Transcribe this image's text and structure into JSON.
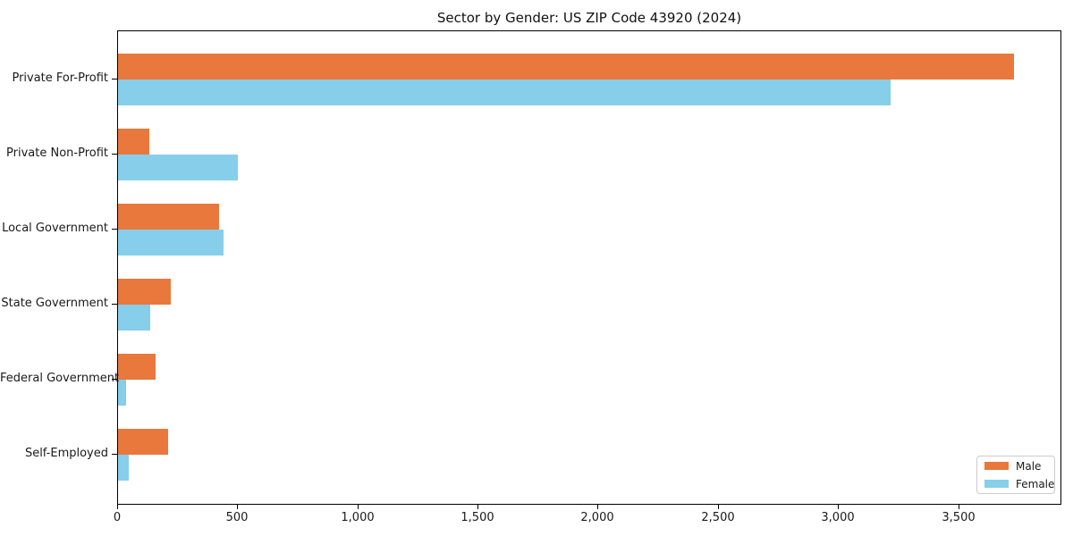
{
  "chart_data": {
    "type": "bar",
    "orientation": "horizontal",
    "title": "Sector by Gender: US ZIP Code 43920 (2024)",
    "categories": [
      "Private For-Profit",
      "Private Non-Profit",
      "Local Government",
      "State Government",
      "Federal Government",
      "Self-Employed"
    ],
    "series": [
      {
        "name": "Male",
        "color": "#e8783c",
        "values": [
          3730,
          130,
          420,
          220,
          155,
          210
        ]
      },
      {
        "name": "Female",
        "color": "#87ceeb",
        "values": [
          3215,
          500,
          440,
          135,
          35,
          45
        ]
      }
    ],
    "xlabel": "",
    "ylabel": "",
    "xlim": [
      0,
      3922
    ],
    "xticks": [
      0,
      500,
      1000,
      1500,
      2000,
      2500,
      3000,
      3500
    ],
    "xtick_labels": [
      "0",
      "500",
      "1,000",
      "1,500",
      "2,000",
      "2,500",
      "3,000",
      "3,500"
    ],
    "grid": false,
    "legend": {
      "position": "lower right"
    },
    "colors": {
      "male": "#e8783c",
      "female": "#87ceeb",
      "spine": "#000000",
      "background": "#ffffff"
    }
  }
}
